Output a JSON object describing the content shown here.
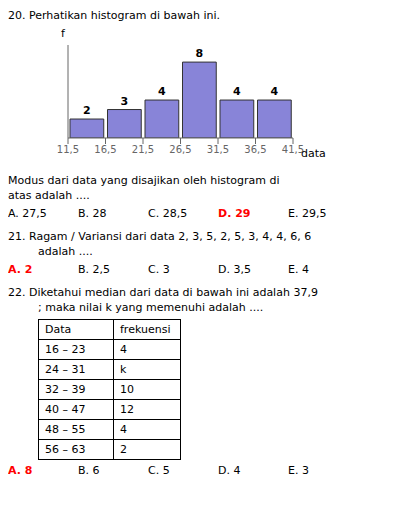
{
  "chart_data": {
    "type": "histogram",
    "title": "20.  Perhatikan histogram di bawah ini.",
    "xlabel": "data",
    "ylabel": "f",
    "bins": [
      11.5,
      16.5,
      21.5,
      26.5,
      31.5,
      36.5,
      41.5
    ],
    "values": [
      2,
      3,
      4,
      8,
      4,
      4
    ],
    "xlim": [
      11.5,
      41.5
    ],
    "xticks": [
      {
        "value": 11.5,
        "label": "11,5"
      },
      {
        "value": 16.5,
        "label": "16,5"
      },
      {
        "value": 21.5,
        "label": "21,5"
      },
      {
        "value": 26.5,
        "label": "26,5"
      },
      {
        "value": 31.5,
        "label": "31,5"
      },
      {
        "value": 36.5,
        "label": "36,5"
      },
      {
        "value": 41.5,
        "label": "41,5"
      }
    ],
    "ylim": [
      0,
      9.8
    ],
    "yticks": [],
    "tick_labels": "x",
    "data_labels": true,
    "annotations": [
      "Modus dari data yang disajikan oleh histogram di",
      "atas adalah ....",
      [
        "A. 27,5",
        "B. 28",
        "C. 28,5",
        {
          "text": "D. 29",
          "color": "red"
        },
        "E. 29,5"
      ],
      "21.  Ragam / Variansi dari data 2, 3, 5, 2, 5, 3, 4, 4, 6, 6",
      "adalah ....",
      [
        {
          "text": "A. 2",
          "color": "red"
        },
        "B. 2,5",
        "C. 3",
        "D. 3,5",
        "E. 4"
      ],
      "22.  Diketahui median dari data di bawah ini adalah 37,9",
      "; maka nilai k yang memenuhi adalah ....",
      {
        "headers": [
          "Data",
          "frekuensi"
        ],
        "rows": [
          [
            "16 – 23",
            "4"
          ],
          [
            "24 – 31",
            "k"
          ],
          [
            "32 – 39",
            "10"
          ],
          [
            "40 – 47",
            "12"
          ],
          [
            "48 – 55",
            "4"
          ],
          [
            "56 – 63",
            "2"
          ]
        ]
      },
      [
        {
          "text": "A. 8",
          "color": "red"
        },
        "B. 6",
        "C. 5",
        "D. 4",
        "E. 3"
      ]
    ]
  }
}
